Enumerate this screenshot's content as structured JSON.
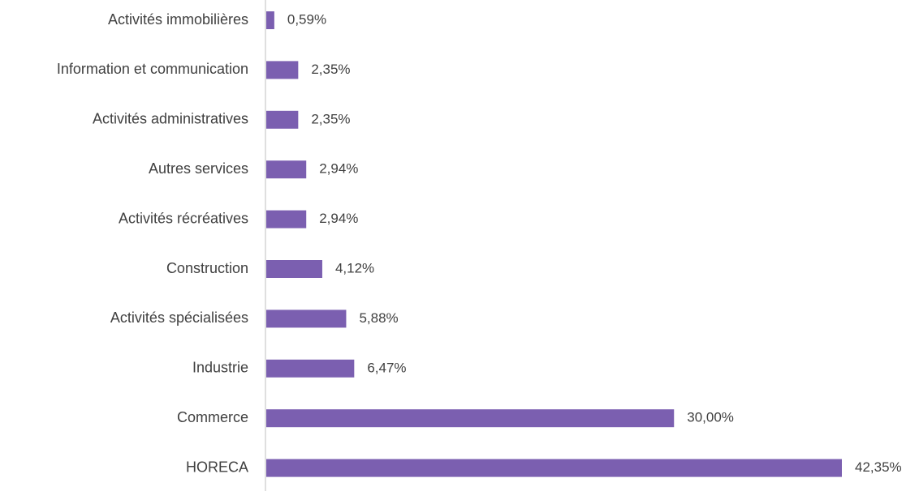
{
  "chart_data": {
    "type": "bar",
    "orientation": "horizontal",
    "categories": [
      "Activités immobilières",
      "Information et communication",
      "Activités administratives",
      "Autres services",
      "Activités récréatives",
      "Construction",
      "Activités spécialisées",
      "Industrie",
      "Commerce",
      "HORECA"
    ],
    "values": [
      0.59,
      2.35,
      2.35,
      2.94,
      2.94,
      4.12,
      5.88,
      6.47,
      30.0,
      42.35
    ],
    "value_labels": [
      "0,59%",
      "2,35%",
      "2,35%",
      "2,94%",
      "2,94%",
      "4,12%",
      "5,88%",
      "6,47%",
      "30,00%",
      "42,35%"
    ],
    "title": "",
    "xlabel": "",
    "ylabel": "",
    "xlim": [
      0,
      42.35
    ],
    "grid": false,
    "legend": "none",
    "bar_color": "#7b5fb0",
    "axis_color": "#bfbfbf",
    "text_color": "#404040"
  }
}
